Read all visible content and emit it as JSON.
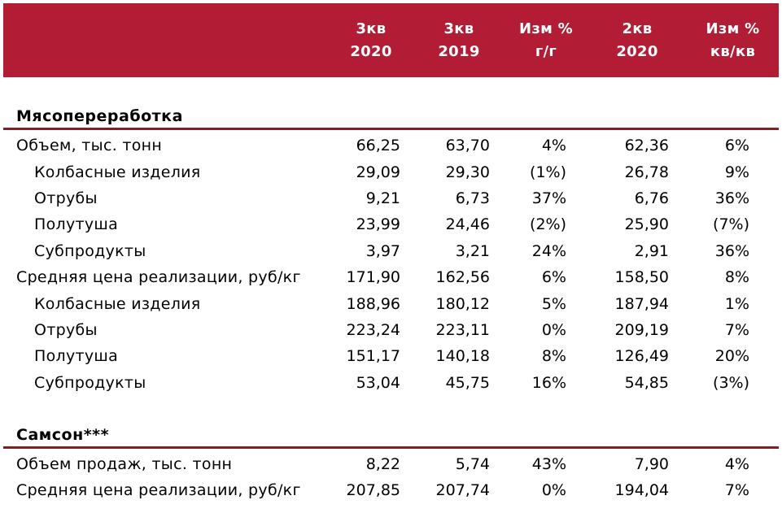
{
  "colors": {
    "header_bg": "#B21C35",
    "header_text": "#FFFFFF",
    "section_rule": "#851E23",
    "body_text": "#000000",
    "background": "#FFFFFF"
  },
  "header": {
    "columns": [
      {
        "line1": "3кв",
        "line2": "2020"
      },
      {
        "line1": "3кв",
        "line2": "2019"
      },
      {
        "line1": "Изм %",
        "line2": "г/г"
      },
      {
        "line1": "2кв",
        "line2": "2020"
      },
      {
        "line1": "Изм %",
        "line2": "кв/кв"
      }
    ]
  },
  "sections": [
    {
      "title": "Мясопереработка",
      "rows": [
        {
          "label": "Объем, тыс. тонн",
          "values": [
            "66,25",
            "63,70",
            "4%",
            "62,36",
            "6%"
          ]
        },
        {
          "label": "Колбасные изделия",
          "values": [
            "29,09",
            "29,30",
            "(1%)",
            "26,78",
            "9%"
          ]
        },
        {
          "label": "Отрубы",
          "values": [
            "9,21",
            "6,73",
            "37%",
            "6,76",
            "36%"
          ]
        },
        {
          "label": "Полутуша",
          "values": [
            "23,99",
            "24,46",
            "(2%)",
            "25,90",
            "(7%)"
          ]
        },
        {
          "label": "Субпродукты",
          "values": [
            "3,97",
            "3,21",
            "24%",
            "2,91",
            "36%"
          ]
        },
        {
          "label": "Средняя цена реализации, руб/кг",
          "values": [
            "171,90",
            "162,56",
            "6%",
            "158,50",
            "8%"
          ]
        },
        {
          "label": "Колбасные изделия",
          "values": [
            "188,96",
            "180,12",
            "5%",
            "187,94",
            "1%"
          ]
        },
        {
          "label": "Отрубы",
          "values": [
            "223,24",
            "223,11",
            "0%",
            "209,19",
            "7%"
          ]
        },
        {
          "label": "Полутуша",
          "values": [
            "151,17",
            "140,18",
            "8%",
            "126,49",
            "20%"
          ]
        },
        {
          "label": "Субпродукты",
          "values": [
            "53,04",
            "45,75",
            "16%",
            "54,85",
            "(3%)"
          ]
        }
      ]
    },
    {
      "title": "Самсон***",
      "rows": [
        {
          "label": "Объем продаж, тыс. тонн",
          "values": [
            "8,22",
            "5,74",
            "43%",
            "7,90",
            "4%"
          ]
        },
        {
          "label": "Средняя цена реализации, руб/кг",
          "values": [
            "207,85",
            "207,74",
            "0%",
            "194,04",
            "7%"
          ]
        }
      ]
    }
  ]
}
